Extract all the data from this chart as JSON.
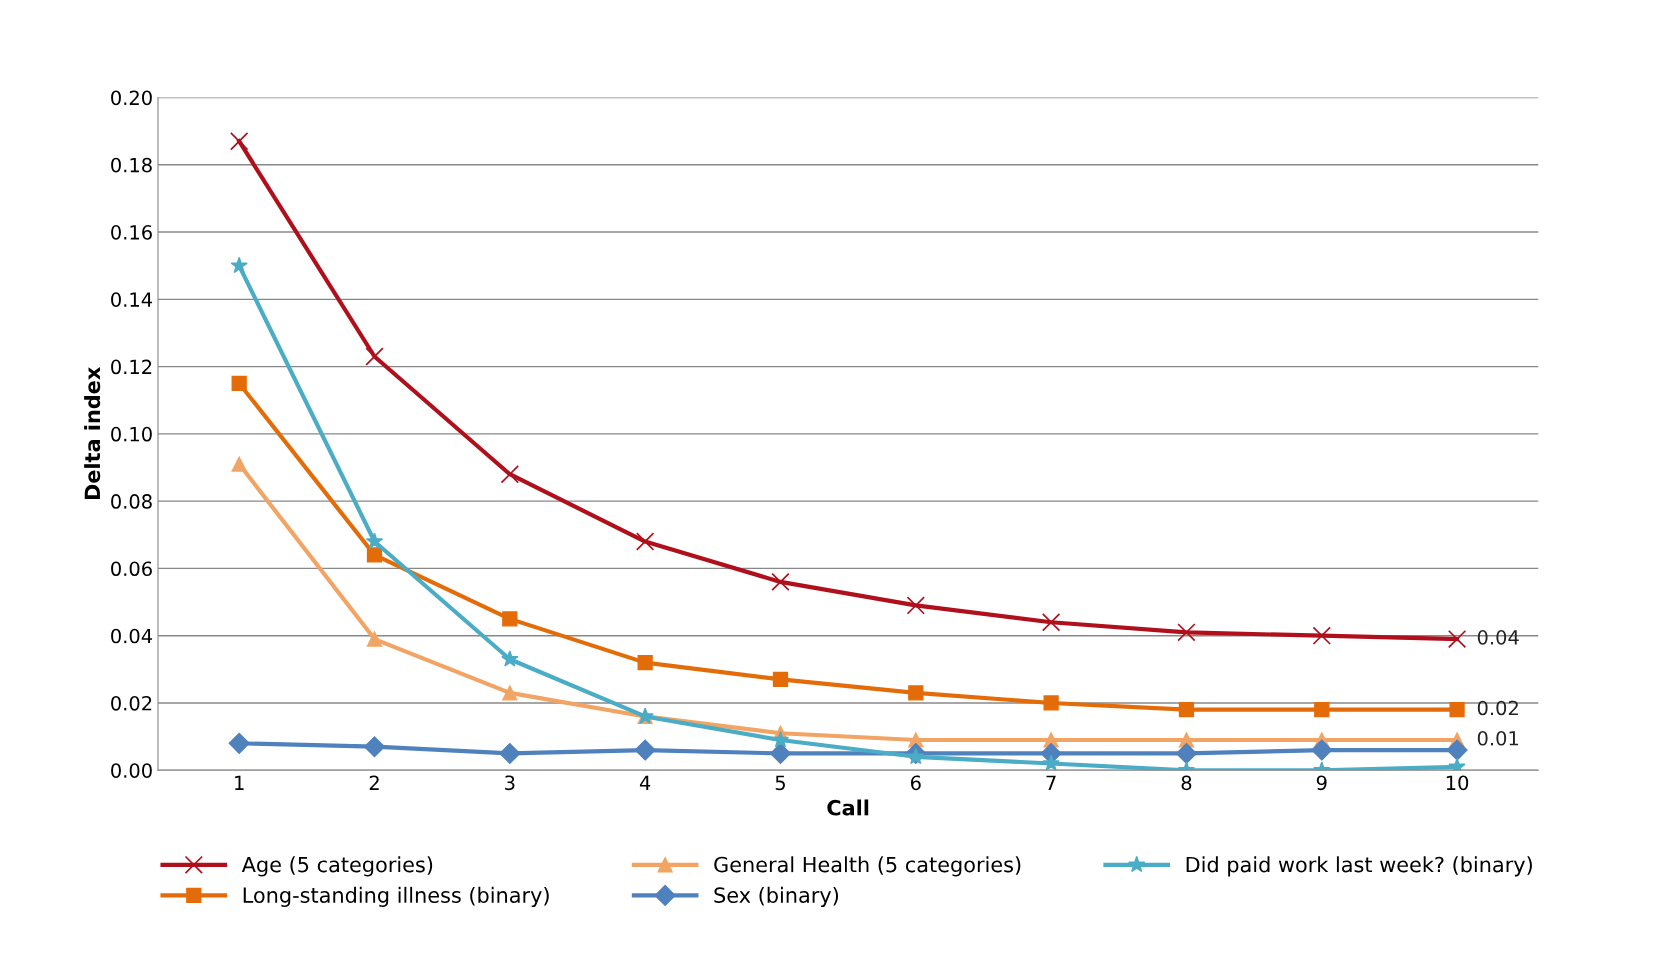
{
  "chart_data": {
    "type": "line",
    "xlabel": "Call",
    "ylabel": "Delta index",
    "categories": [
      "1",
      "2",
      "3",
      "4",
      "5",
      "6",
      "7",
      "8",
      "9",
      "10"
    ],
    "series": [
      {
        "name": "Age (5 categories)",
        "color": "#b0101c",
        "marker": "cross",
        "values": [
          0.187,
          0.123,
          0.088,
          0.068,
          0.056,
          0.049,
          0.044,
          0.041,
          0.04,
          0.039
        ],
        "value_labels": [
          null,
          null,
          null,
          null,
          null,
          null,
          null,
          null,
          null,
          "0.04"
        ]
      },
      {
        "name": "Long-standing illness (binary)",
        "color": "#e36c09",
        "marker": "square",
        "values": [
          0.115,
          0.064,
          0.045,
          0.032,
          0.027,
          0.023,
          0.02,
          0.018,
          0.018,
          0.018
        ],
        "value_labels": [
          null,
          null,
          null,
          null,
          null,
          null,
          null,
          null,
          null,
          "0.02"
        ]
      },
      {
        "name": "General Health (5 categories)",
        "color": "#f2a464",
        "marker": "triangle",
        "values": [
          0.091,
          0.039,
          0.023,
          0.016,
          0.011,
          0.009,
          0.009,
          0.009,
          0.009,
          0.009
        ],
        "value_labels": [
          null,
          null,
          null,
          null,
          null,
          null,
          null,
          null,
          null,
          "0.01"
        ]
      },
      {
        "name": "Sex (binary)",
        "color": "#4f81bd",
        "marker": "diamond",
        "values": [
          0.008,
          0.007,
          0.005,
          0.006,
          0.005,
          0.005,
          0.005,
          0.005,
          0.006,
          0.006
        ]
      },
      {
        "name": "Did paid work last week? (binary)",
        "color": "#4bacc6",
        "marker": "star",
        "values": [
          0.15,
          0.068,
          0.033,
          0.016,
          0.009,
          0.004,
          0.002,
          0.0,
          0.0,
          0.001
        ]
      }
    ],
    "ylim": [
      0,
      0.2
    ],
    "yticks": [
      {
        "value": 0,
        "label": "0.00"
      },
      {
        "value": 0.02,
        "label": "0.02"
      },
      {
        "value": 0.04,
        "label": "0.04"
      },
      {
        "value": 0.06,
        "label": "0.06"
      },
      {
        "value": 0.08,
        "label": "0.08"
      },
      {
        "value": 0.1,
        "label": "0.10"
      },
      {
        "value": 0.12,
        "label": "0.12"
      },
      {
        "value": 0.14,
        "label": "0.14"
      },
      {
        "value": 0.16,
        "label": "0.16"
      },
      {
        "value": 0.18,
        "label": "0.18"
      },
      {
        "value": 0.2,
        "label": "0.20"
      }
    ],
    "grid": "y",
    "legend": "bottom",
    "line_style": "solid"
  }
}
